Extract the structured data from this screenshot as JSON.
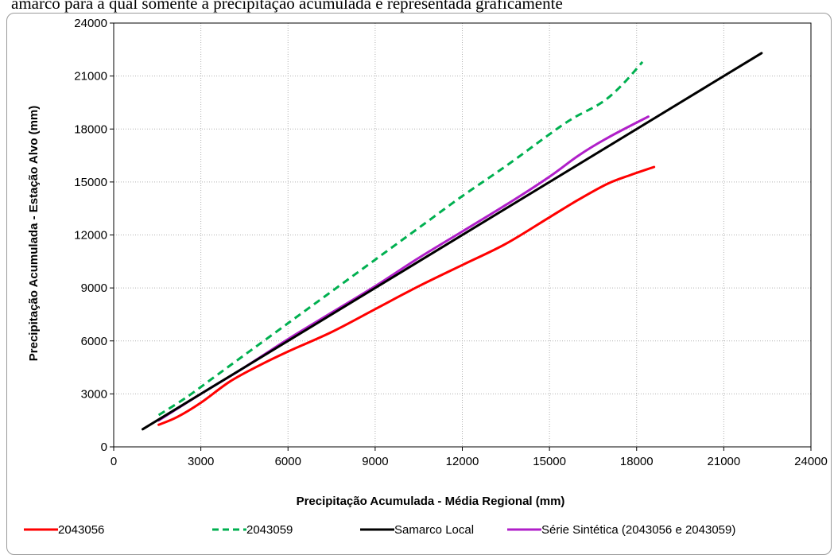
{
  "page": {
    "top_text": "amarco para a qual somente a precipitação acumulada é representada graficamente"
  },
  "chart_data": {
    "type": "line",
    "xlabel": "Precipitação Acumulada - Média Regional (mm)",
    "ylabel": "Precipitação Acumulada - Estação Alvo (mm)",
    "xlim": [
      0,
      24000
    ],
    "ylim": [
      0,
      24000
    ],
    "x_ticks": [
      0,
      3000,
      6000,
      9000,
      12000,
      15000,
      18000,
      21000,
      24000
    ],
    "y_ticks": [
      0,
      3000,
      6000,
      9000,
      12000,
      15000,
      18000,
      21000,
      24000
    ],
    "grid": true,
    "legend_position": "bottom",
    "series": [
      {
        "name": "2043056",
        "color": "#ff0000",
        "dash": "solid",
        "x": [
          1550,
          2200,
          3000,
          4000,
          5000,
          6000,
          7500,
          9000,
          10500,
          12000,
          13500,
          15000,
          16000,
          17000,
          17800,
          18600
        ],
        "y": [
          1250,
          1700,
          2500,
          3700,
          4600,
          5400,
          6500,
          7800,
          9100,
          10300,
          11500,
          13000,
          14000,
          14900,
          15400,
          15850
        ]
      },
      {
        "name": "2043059",
        "color": "#00b050",
        "dash": "dashed",
        "x": [
          1550,
          2500,
          3500,
          4500,
          6000,
          7500,
          9000,
          10500,
          12000,
          13500,
          15000,
          15800,
          16800,
          17500,
          18200
        ],
        "y": [
          1800,
          2800,
          4000,
          5200,
          7000,
          8800,
          10600,
          12400,
          14200,
          15900,
          17700,
          18600,
          19500,
          20500,
          21800
        ]
      },
      {
        "name": "Samarco Local",
        "color": "#000000",
        "dash": "solid",
        "x": [
          1000,
          22300
        ],
        "y": [
          1000,
          22300
        ]
      },
      {
        "name": "Série Sintética (2043056 e 2043059)",
        "color": "#b01fc9",
        "dash": "solid",
        "x": [
          1550,
          3000,
          4500,
          6000,
          7500,
          9000,
          10500,
          12000,
          13500,
          15000,
          16000,
          17000,
          18400
        ],
        "y": [
          1500,
          3000,
          4500,
          6100,
          7600,
          9100,
          10700,
          12200,
          13700,
          15300,
          16500,
          17500,
          18700
        ]
      }
    ]
  }
}
